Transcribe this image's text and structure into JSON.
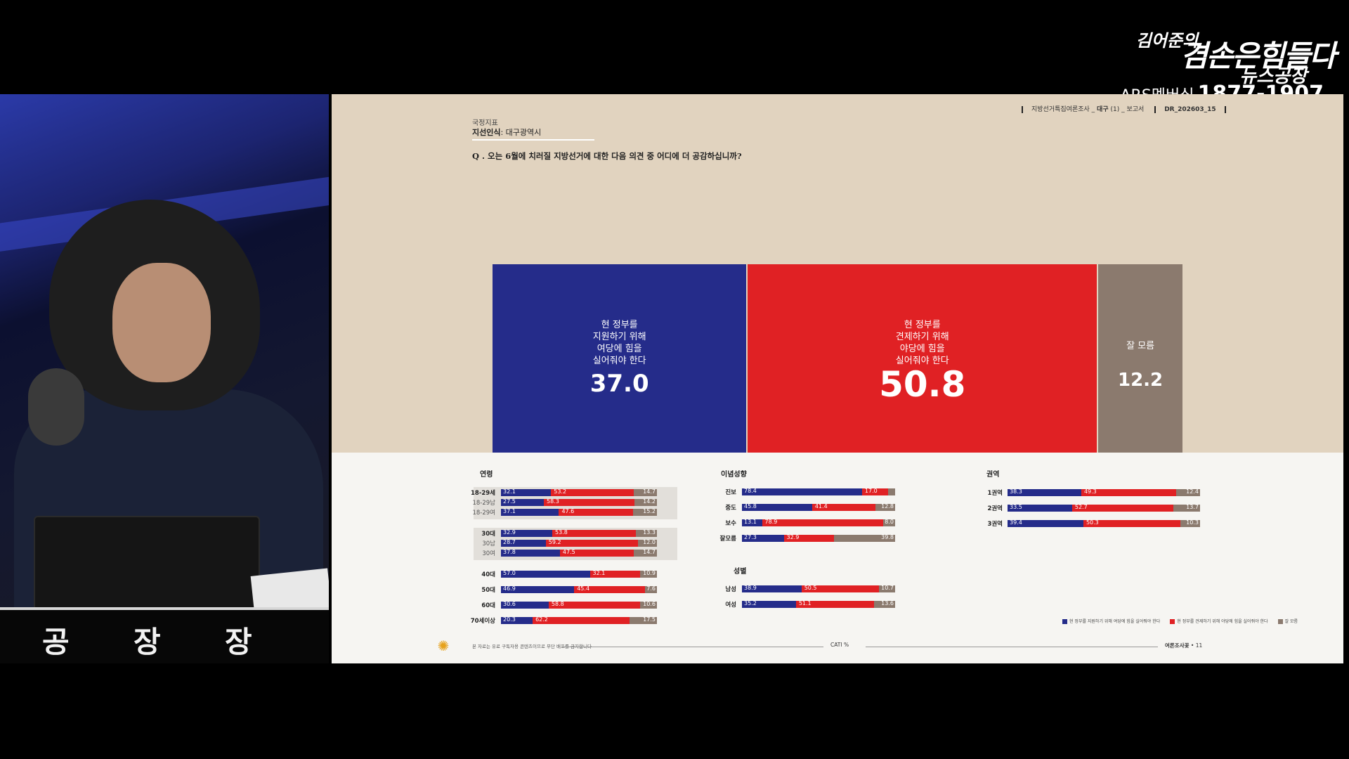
{
  "broadcast": {
    "logo_line1": "김어준의",
    "logo_line2": "겸손은힘들다",
    "logo_line3": "뉴스공장",
    "membership_label": "ARS멤버십",
    "membership_number": "1877-1907",
    "desk_letters": [
      "공",
      "장",
      "장"
    ]
  },
  "slide": {
    "header_right": {
      "survey": "지방선거특집여론조사",
      "region": "대구",
      "part": "(1)",
      "report": "보고서",
      "code": "DR_202603_15"
    },
    "category": "국정지표",
    "subtitle_bold": "지선인식",
    "subtitle_rest": ": 대구광역시",
    "question": "Q . 오는 6월에 치러질 지방선거에 대한 다음 의견 중 어디에 더 공감하십니까?",
    "footer": {
      "note": "본 자료는 유료 구독자용 콘텐츠이므로 무단 배포를 금지합니다",
      "method": "CATI",
      "method_suffix": "%",
      "right": "여론조사꽃",
      "page": "11"
    }
  },
  "chart_data": [
    {
      "type": "bar",
      "stacked": true,
      "orientation": "horizontal",
      "categories": [
        "전체"
      ],
      "series": [
        {
          "name": "현 정부를 지원하기 위해 여당에 힘을 실어줘야 한다",
          "values": [
            37.0
          ],
          "color": "#252c8a"
        },
        {
          "name": "현 정부를 견제하기 위해 야당에 힘을 실어줘야 한다",
          "values": [
            50.8
          ],
          "color": "#e02124"
        },
        {
          "name": "잘 모름",
          "values": [
            12.2
          ],
          "color": "#8b7a6e"
        }
      ],
      "value_labels": [
        "37.0",
        "50.8",
        "12.2"
      ],
      "segment_labels": [
        "현 정부를\n지원하기 위해\n여당에 힘을\n실어줘야 한다",
        "현 정부를\n견제하기 위해\n야당에 힘을\n실어줘야 한다",
        "잘 모름"
      ]
    },
    {
      "type": "bar",
      "stacked": true,
      "orientation": "horizontal",
      "title": "연령",
      "groups": [
        {
          "highlight": true,
          "rows": [
            {
              "label": "18-29세",
              "values": [
                32.1,
                53.2,
                14.7
              ],
              "labels": [
                "32.1",
                "53.2",
                "14.7"
              ]
            },
            {
              "label": "18-29남",
              "sub": true,
              "values": [
                27.5,
                58.3,
                14.2
              ],
              "labels": [
                "27.5",
                "58.3",
                "14.2"
              ]
            },
            {
              "label": "18-29여",
              "sub": true,
              "values": [
                37.1,
                47.6,
                15.2
              ],
              "labels": [
                "37.1",
                "47.6",
                "15.2"
              ]
            }
          ]
        },
        {
          "highlight": true,
          "rows": [
            {
              "label": "30대",
              "values": [
                32.9,
                53.8,
                13.3
              ],
              "labels": [
                "32.9",
                "53.8",
                "13.3"
              ]
            },
            {
              "label": "30남",
              "sub": true,
              "values": [
                28.7,
                59.2,
                12.0
              ],
              "labels": [
                "28.7",
                "59.2",
                "12.0"
              ]
            },
            {
              "label": "30여",
              "sub": true,
              "values": [
                37.8,
                47.5,
                14.7
              ],
              "labels": [
                "37.8",
                "47.5",
                "14.7"
              ]
            }
          ]
        },
        {
          "rows": [
            {
              "label": "40대",
              "values": [
                57.0,
                32.1,
                10.9
              ],
              "labels": [
                "57.0",
                "32.1",
                "10.9"
              ]
            }
          ]
        },
        {
          "rows": [
            {
              "label": "50대",
              "values": [
                46.9,
                45.4,
                7.6
              ],
              "labels": [
                "46.9",
                "45.4",
                "7.6"
              ]
            }
          ]
        },
        {
          "rows": [
            {
              "label": "60대",
              "values": [
                30.6,
                58.8,
                10.6
              ],
              "labels": [
                "30.6",
                "58.8",
                "10.6"
              ]
            }
          ]
        },
        {
          "rows": [
            {
              "label": "70세이상",
              "values": [
                20.3,
                62.2,
                17.5
              ],
              "labels": [
                "20.3",
                "62.2",
                "17.5"
              ]
            }
          ]
        }
      ]
    },
    {
      "type": "bar",
      "stacked": true,
      "orientation": "horizontal",
      "title": "이념성향",
      "groups": [
        {
          "rows": [
            {
              "label": "진보",
              "values": [
                78.4,
                17.0,
                4.6
              ],
              "labels": [
                "78.4",
                "17.0",
                ""
              ]
            }
          ]
        },
        {
          "rows": [
            {
              "label": "중도",
              "values": [
                45.8,
                41.4,
                12.8
              ],
              "labels": [
                "45.8",
                "41.4",
                "12.8"
              ]
            }
          ]
        },
        {
          "rows": [
            {
              "label": "보수",
              "values": [
                13.1,
                78.9,
                8.0
              ],
              "labels": [
                "13.1",
                "78.9",
                "8.0"
              ]
            }
          ]
        },
        {
          "rows": [
            {
              "label": "잘모름",
              "values": [
                27.3,
                32.9,
                39.8
              ],
              "labels": [
                "27.3",
                "32.9",
                "39.8"
              ]
            }
          ]
        }
      ]
    },
    {
      "type": "bar",
      "stacked": true,
      "orientation": "horizontal",
      "title": "성별",
      "groups": [
        {
          "rows": [
            {
              "label": "남성",
              "values": [
                38.9,
                50.5,
                10.7
              ],
              "labels": [
                "38.9",
                "50.5",
                "10.7"
              ]
            }
          ]
        },
        {
          "rows": [
            {
              "label": "여성",
              "values": [
                35.2,
                51.1,
                13.6
              ],
              "labels": [
                "35.2",
                "51.1",
                "13.6"
              ]
            }
          ]
        }
      ]
    },
    {
      "type": "bar",
      "stacked": true,
      "orientation": "horizontal",
      "title": "권역",
      "groups": [
        {
          "rows": [
            {
              "label": "1권역",
              "values": [
                38.3,
                49.3,
                12.4
              ],
              "labels": [
                "38.3",
                "49.3",
                "12.4"
              ]
            }
          ]
        },
        {
          "rows": [
            {
              "label": "2권역",
              "values": [
                33.5,
                52.7,
                13.7
              ],
              "labels": [
                "33.5",
                "52.7",
                "13.7"
              ]
            }
          ]
        },
        {
          "rows": [
            {
              "label": "3권역",
              "values": [
                39.4,
                50.3,
                10.3
              ],
              "labels": [
                "39.4",
                "50.3",
                "10.3"
              ]
            }
          ]
        }
      ]
    }
  ],
  "legend": [
    {
      "label": "현 정부를 지원하기 위해 여당에 힘을 실어줘야 한다",
      "color": "#252c8a"
    },
    {
      "label": "현 정부를 견제하기 위해 야당에 힘을 실어줘야 한다",
      "color": "#e02124"
    },
    {
      "label": "잘 모름",
      "color": "#8b7a6e"
    }
  ]
}
